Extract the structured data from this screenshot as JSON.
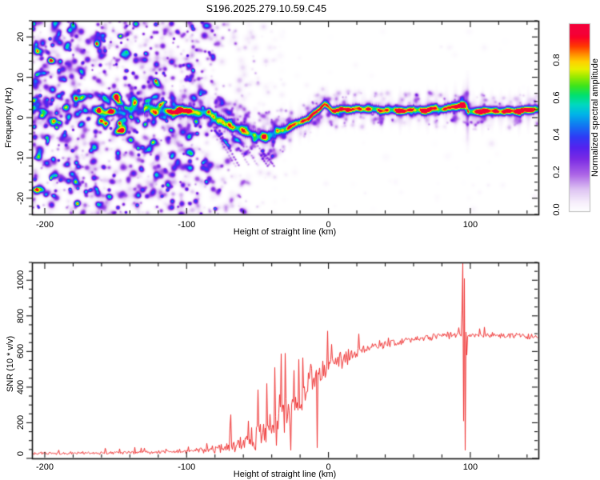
{
  "figure": {
    "title": "S196.2025.279.10.59.C45",
    "background": "#ffffff",
    "text_color": "#000000"
  },
  "chart_data": [
    {
      "type": "heatmap",
      "title": "S196.2025.279.10.59.C45",
      "xlabel": "Height of straight line (km)",
      "ylabel": "Frequency (Hz)",
      "xlim": [
        -209,
        148
      ],
      "ylim": [
        -24,
        24
      ],
      "x_major_ticks": [
        -200,
        -100,
        0,
        100
      ],
      "x_tick_labels": [
        "-200",
        "-100",
        "0",
        "100"
      ],
      "x_minor_step": 20,
      "y_major_ticks": [
        -20,
        -10,
        0,
        10,
        20
      ],
      "y_tick_labels": [
        "-20",
        "-10",
        "0",
        "10",
        "20"
      ],
      "y_minor_step": 2,
      "colorbar": {
        "label": "Normalized spectral amplitude",
        "range": [
          0,
          1
        ],
        "ticks": [
          0,
          0.2,
          0.4,
          0.6,
          0.8
        ],
        "tick_labels": [
          "0.0",
          "0.2",
          "0.4",
          "0.6",
          "0.8"
        ],
        "stops": [
          [
            0.0,
            "#ffffff"
          ],
          [
            0.05,
            "#f6eefb"
          ],
          [
            0.12,
            "#ddc2f2"
          ],
          [
            0.2,
            "#ab63e6"
          ],
          [
            0.28,
            "#7b2be4"
          ],
          [
            0.34,
            "#5522ee"
          ],
          [
            0.4,
            "#2e3cf5"
          ],
          [
            0.46,
            "#1277f2"
          ],
          [
            0.52,
            "#00b4e8"
          ],
          [
            0.57,
            "#00d9c0"
          ],
          [
            0.62,
            "#00e070"
          ],
          [
            0.67,
            "#3ce41c"
          ],
          [
            0.72,
            "#9bea00"
          ],
          [
            0.76,
            "#e8f000"
          ],
          [
            0.8,
            "#ffd000"
          ],
          [
            0.84,
            "#ff8c00"
          ],
          [
            0.88,
            "#ff3c00"
          ],
          [
            0.93,
            "#fa0028"
          ],
          [
            1.0,
            "#e60060"
          ]
        ]
      },
      "echo_trace": {
        "comment": "radar echo ridge: [height_km, frequency_Hz, normalized_amplitude, half_width_px]",
        "points": [
          [
            -209,
            2.0,
            0.5,
            2.6
          ],
          [
            -204,
            2.2,
            0.42,
            2.4
          ],
          [
            -198,
            1.6,
            0.3,
            2.2
          ],
          [
            -192,
            2.1,
            0.38,
            2.6
          ],
          [
            -187,
            1.9,
            0.55,
            2.8
          ],
          [
            -181,
            2.3,
            0.35,
            2.4
          ],
          [
            -174,
            1.6,
            0.3,
            2.2
          ],
          [
            -167,
            2.0,
            0.4,
            2.6
          ],
          [
            -160,
            1.7,
            0.52,
            3.0
          ],
          [
            -153,
            1.5,
            0.62,
            3.2
          ],
          [
            -148,
            1.9,
            0.55,
            3.0
          ],
          [
            -142,
            1.6,
            0.4,
            2.6
          ],
          [
            -135,
            2.0,
            0.5,
            3.2
          ],
          [
            -128,
            2.4,
            0.58,
            3.6
          ],
          [
            -121,
            2.1,
            0.62,
            3.8
          ],
          [
            -114,
            2.3,
            0.66,
            3.8
          ],
          [
            -107,
            1.9,
            0.62,
            3.8
          ],
          [
            -100,
            2.1,
            0.66,
            3.8
          ],
          [
            -94,
            1.6,
            0.62,
            3.8
          ],
          [
            -88,
            1.1,
            0.6,
            3.8
          ],
          [
            -82,
            0.5,
            0.58,
            3.8
          ],
          [
            -76,
            -0.5,
            0.52,
            3.8
          ],
          [
            -70,
            -1.6,
            0.56,
            3.8
          ],
          [
            -64,
            -2.5,
            0.52,
            3.8
          ],
          [
            -58,
            -3.2,
            0.56,
            3.8
          ],
          [
            -52,
            -4.2,
            0.52,
            3.8
          ],
          [
            -46,
            -4.8,
            0.58,
            3.8
          ],
          [
            -41,
            -4.4,
            0.54,
            3.8
          ],
          [
            -36,
            -3.6,
            0.58,
            3.6
          ],
          [
            -31,
            -2.7,
            0.62,
            3.6
          ],
          [
            -26,
            -2.0,
            0.68,
            3.4
          ],
          [
            -22,
            -1.4,
            0.74,
            3.2
          ],
          [
            -18,
            -0.8,
            0.86,
            3.0
          ],
          [
            -15,
            -0.2,
            0.72,
            3.0
          ],
          [
            -12,
            0.5,
            0.76,
            3.0
          ],
          [
            -9,
            1.2,
            0.72,
            3.0
          ],
          [
            -6,
            2.2,
            0.76,
            3.0
          ],
          [
            -3,
            3.3,
            0.8,
            3.0
          ],
          [
            -1,
            3.1,
            0.74,
            3.0
          ],
          [
            1,
            2.3,
            0.72,
            3.0
          ],
          [
            3,
            1.8,
            0.82,
            3.0
          ],
          [
            6,
            1.9,
            0.88,
            3.0
          ],
          [
            10,
            2.0,
            0.78,
            3.0
          ],
          [
            14,
            2.0,
            0.86,
            3.0
          ],
          [
            18,
            2.0,
            0.74,
            3.0
          ],
          [
            22,
            2.0,
            0.88,
            3.0
          ],
          [
            27,
            2.1,
            0.8,
            3.0
          ],
          [
            32,
            2.0,
            0.88,
            3.0
          ],
          [
            38,
            2.0,
            0.92,
            3.0
          ],
          [
            44,
            2.0,
            0.84,
            3.0
          ],
          [
            50,
            1.9,
            0.92,
            3.0
          ],
          [
            56,
            2.0,
            0.8,
            3.0
          ],
          [
            62,
            2.0,
            0.92,
            3.0
          ],
          [
            68,
            1.9,
            0.86,
            3.0
          ],
          [
            74,
            2.0,
            0.8,
            3.2
          ],
          [
            80,
            2.2,
            0.84,
            3.2
          ],
          [
            85,
            2.5,
            0.88,
            3.2
          ],
          [
            89,
            2.9,
            0.92,
            3.4
          ],
          [
            93,
            3.1,
            0.92,
            3.4
          ],
          [
            96,
            3.0,
            0.85,
            3.2
          ],
          [
            97.4,
            2.6,
            0.45,
            4.5
          ],
          [
            98.4,
            1.5,
            0.8,
            3.0
          ],
          [
            101,
            1.4,
            0.9,
            3.0
          ],
          [
            106,
            1.5,
            0.88,
            3.0
          ],
          [
            112,
            1.6,
            0.84,
            3.0
          ],
          [
            118,
            1.7,
            0.9,
            3.0
          ],
          [
            124,
            1.8,
            0.82,
            3.0
          ],
          [
            130,
            1.8,
            0.88,
            3.0
          ],
          [
            136,
            1.9,
            0.84,
            3.0
          ],
          [
            142,
            1.9,
            0.92,
            3.0
          ],
          [
            148,
            1.9,
            0.9,
            3.0
          ]
        ],
        "intermittent_below_km": -130,
        "vertical_smear_event": {
          "x_km": 97.6,
          "freq_center": 1.5,
          "freq_sigma_hz": 4.0,
          "amplitude": 0.2
        }
      },
      "noise_field": {
        "comment": "speckle noise dense for x<-90 km, fading to ~-35 km, sparse faint elsewhere",
        "blob_count": 1500,
        "band_vicinity_blobs": 150,
        "near_band_fuzz_blobs": 430,
        "amp_range": [
          0.05,
          0.43
        ],
        "diagonal_streaks": {
          "x_range": [
            -88,
            -45
          ],
          "freq_range": [
            -12,
            -2
          ],
          "count": 9
        }
      }
    },
    {
      "type": "line",
      "xlabel": "Height of straight line (km)",
      "ylabel": "SNR (10 * v/v)",
      "xlim": [
        -209,
        148
      ],
      "ylim": [
        0,
        1100
      ],
      "x_major_ticks": [
        -200,
        -100,
        0,
        100
      ],
      "x_tick_labels": [
        "-200",
        "-100",
        "0",
        "100"
      ],
      "x_minor_step": 20,
      "y_major_ticks": [
        0,
        200,
        400,
        600,
        800,
        1000
      ],
      "y_tick_labels": [
        "0",
        "200",
        "400",
        "600",
        "800",
        "1000"
      ],
      "y_minor_step": 50,
      "line_color": "#ee3030",
      "baseline": [
        [
          -209,
          28
        ],
        [
          -190,
          29
        ],
        [
          -170,
          30
        ],
        [
          -150,
          32
        ],
        [
          -130,
          33
        ],
        [
          -110,
          36
        ],
        [
          -95,
          40
        ],
        [
          -85,
          48
        ],
        [
          -76,
          58
        ],
        [
          -68,
          70
        ],
        [
          -60,
          85
        ],
        [
          -53,
          105
        ],
        [
          -47,
          130
        ],
        [
          -41,
          165
        ],
        [
          -36,
          200
        ],
        [
          -31,
          240
        ],
        [
          -26,
          285
        ],
        [
          -21,
          330
        ],
        [
          -16,
          380
        ],
        [
          -11,
          425
        ],
        [
          -6,
          465
        ],
        [
          -1,
          505
        ],
        [
          4,
          530
        ],
        [
          9,
          550
        ],
        [
          14,
          570
        ],
        [
          20,
          595
        ],
        [
          27,
          615
        ],
        [
          35,
          632
        ],
        [
          45,
          648
        ],
        [
          55,
          662
        ],
        [
          65,
          676
        ],
        [
          75,
          686
        ],
        [
          85,
          692
        ],
        [
          92,
          698
        ],
        [
          98,
          692
        ],
        [
          105,
          690
        ],
        [
          115,
          688
        ],
        [
          125,
          686
        ],
        [
          132,
          690
        ],
        [
          140,
          682
        ],
        [
          148,
          686
        ]
      ],
      "noise_envelope": [
        [
          -209,
          10
        ],
        [
          -150,
          11
        ],
        [
          -110,
          13
        ],
        [
          -90,
          18
        ],
        [
          -80,
          28
        ],
        [
          -72,
          40
        ],
        [
          -64,
          55
        ],
        [
          -56,
          75
        ],
        [
          -48,
          105
        ],
        [
          -42,
          135
        ],
        [
          -36,
          155
        ],
        [
          -30,
          165
        ],
        [
          -24,
          150
        ],
        [
          -18,
          135
        ],
        [
          -12,
          115
        ],
        [
          -6,
          95
        ],
        [
          0,
          80
        ],
        [
          6,
          65
        ],
        [
          12,
          52
        ],
        [
          20,
          42
        ],
        [
          30,
          34
        ],
        [
          45,
          26
        ],
        [
          60,
          22
        ],
        [
          75,
          22
        ],
        [
          88,
          26
        ],
        [
          96,
          24
        ],
        [
          110,
          20
        ],
        [
          130,
          20
        ],
        [
          148,
          22
        ]
      ],
      "spikes": [
        [
          -69,
          245
        ],
        [
          -57,
          210
        ],
        [
          -44,
          420
        ],
        [
          -38,
          510
        ],
        [
          -31,
          590
        ],
        [
          -27,
          45
        ],
        [
          -21,
          555
        ],
        [
          -13,
          530
        ],
        [
          -8,
          60
        ],
        [
          -1,
          715
        ],
        [
          2,
          640
        ],
        [
          93.8,
          830
        ],
        [
          94.6,
          1095
        ],
        [
          95.2,
          210
        ],
        [
          95.7,
          1010
        ],
        [
          96.3,
          45
        ],
        [
          97,
          580
        ]
      ]
    }
  ]
}
